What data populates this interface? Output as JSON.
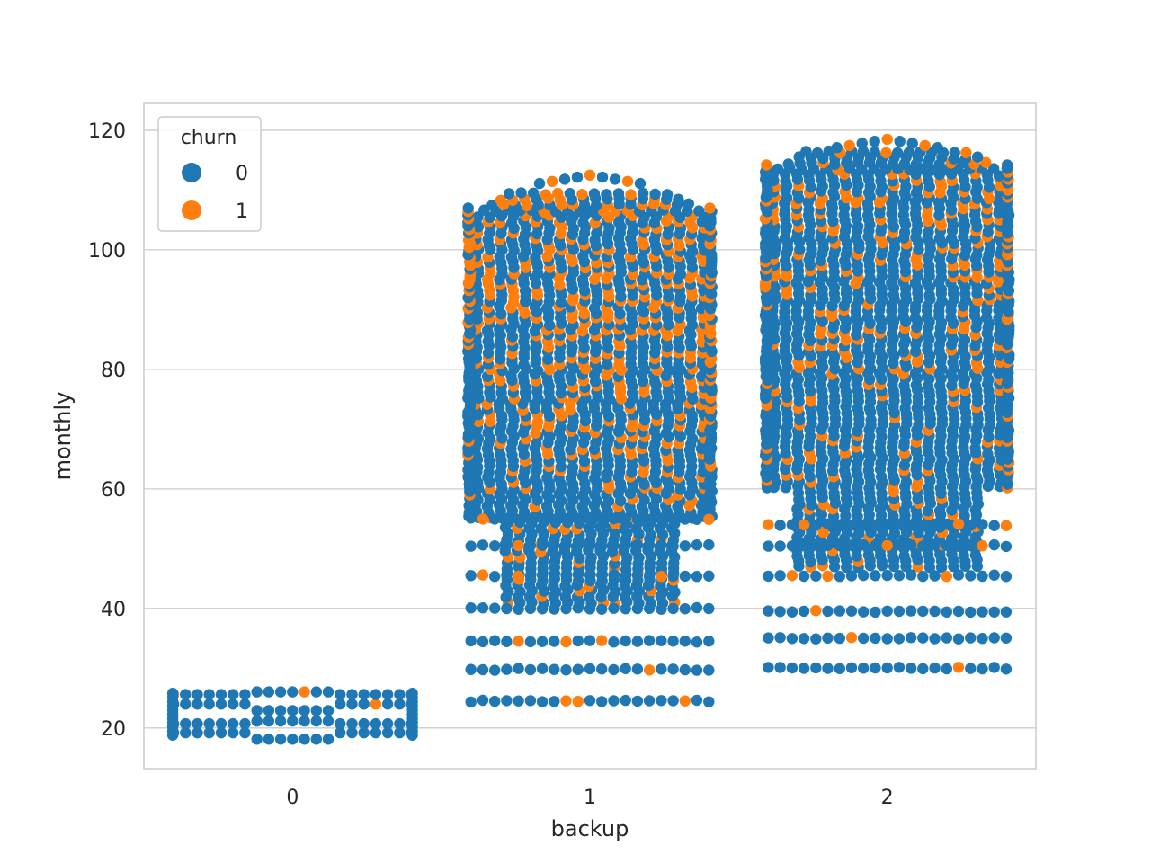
{
  "chart_data": {
    "type": "scatter",
    "subtype": "swarm",
    "title": "",
    "xlabel": "backup",
    "ylabel": "monthly",
    "categories": [
      "0",
      "1",
      "2"
    ],
    "ylim": [
      13.2,
      124.5
    ],
    "yticks": [
      20,
      40,
      60,
      80,
      100,
      120
    ],
    "grid": true,
    "legend": {
      "title": "churn",
      "placement": "top-left",
      "entries": [
        {
          "label": "0",
          "color": "#1f77b4"
        },
        {
          "label": "1",
          "color": "#ff7f0e"
        }
      ]
    },
    "series": [
      {
        "name": "0",
        "color": "#1f77b4",
        "groups": [
          {
            "category": "0",
            "range": [
              18.3,
              26.5
            ],
            "bands": [
              19.3,
              20.5,
              25.0
            ]
          },
          {
            "category": "1",
            "range": [
              23.5,
              113.0
            ],
            "bands": [
              25,
              30,
              35,
              40,
              45,
              50,
              55,
              60,
              65
            ]
          },
          {
            "category": "2",
            "range": [
              28.5,
              119.0
            ],
            "bands": [
              30,
              35,
              40,
              46,
              50,
              55,
              60,
              65
            ]
          }
        ]
      },
      {
        "name": "1",
        "color": "#ff7f0e",
        "groups": [
          {
            "category": "0",
            "range": [
              19.0,
              25.3
            ],
            "bands": [
              20.5,
              25.3
            ]
          },
          {
            "category": "1",
            "range": [
              23.5,
              111.5
            ],
            "bands": [
              25,
              30,
              35,
              40,
              45,
              50,
              55,
              60
            ]
          },
          {
            "category": "2",
            "range": [
              28.5,
              118.5
            ],
            "bands": [
              30,
              35,
              40,
              50,
              55,
              60
            ]
          }
        ]
      }
    ]
  }
}
